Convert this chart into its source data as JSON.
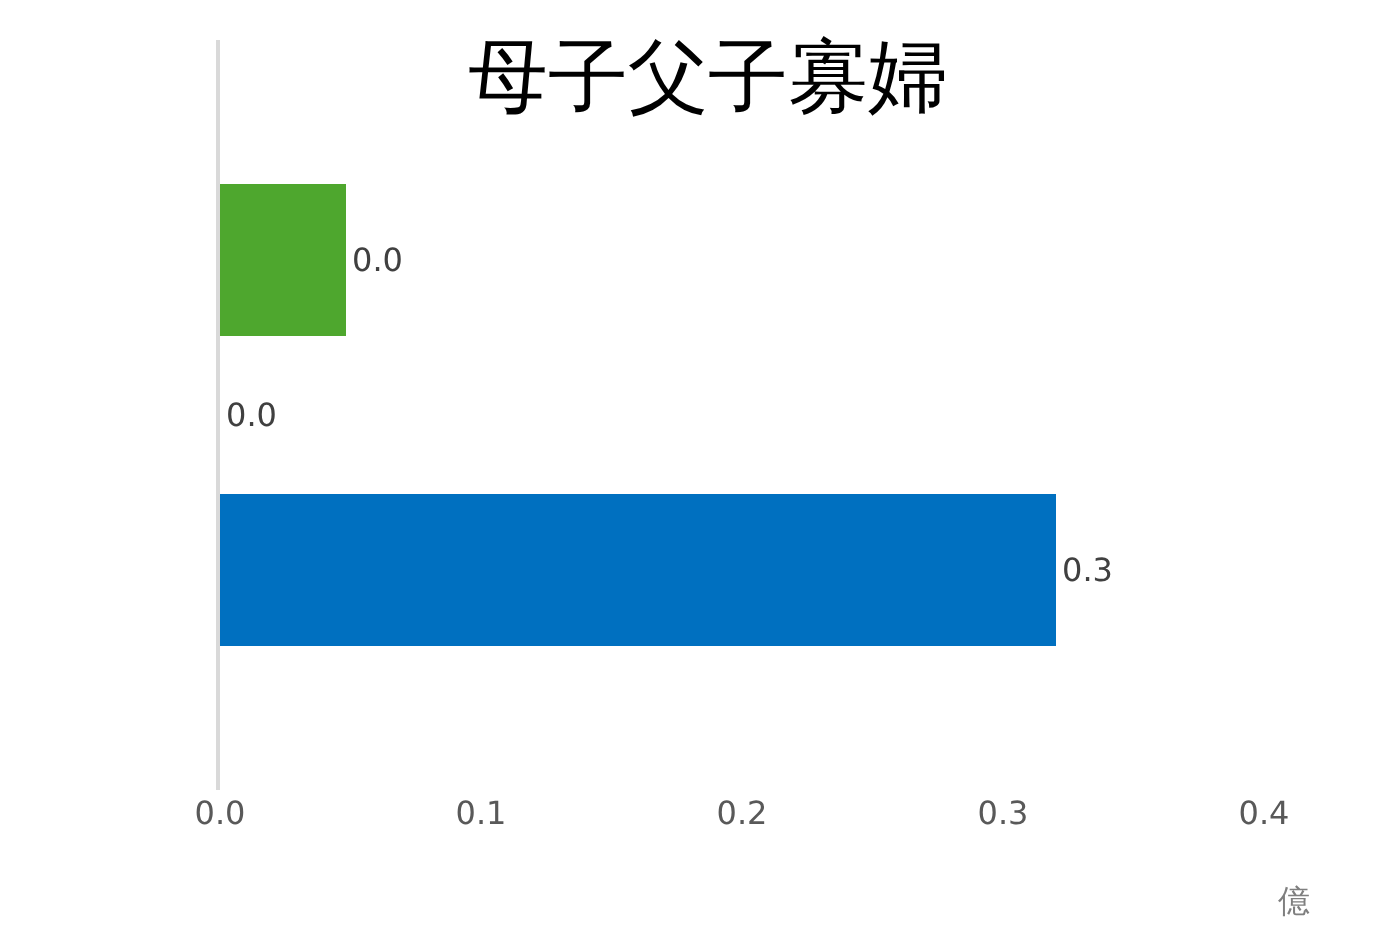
{
  "chart_data": {
    "type": "bar",
    "orientation": "horizontal",
    "title": "母子父子寡婦",
    "xlabel": "億",
    "categories": [
      null,
      null,
      null
    ],
    "series": [
      {
        "values": [
          0.048,
          0,
          0.32
        ],
        "colors": [
          "#4ea72e",
          null,
          "#0070c0"
        ],
        "value_labels": [
          "0.0",
          "0.0",
          "0.3"
        ]
      }
    ],
    "xlim": [
      0,
      0.4
    ],
    "xticks": [
      {
        "value": 0,
        "label": "0.0"
      },
      {
        "value": 0.1,
        "label": "0.1"
      },
      {
        "value": 0.2,
        "label": "0.2"
      },
      {
        "value": 0.3,
        "label": "0.3"
      },
      {
        "value": 0.4,
        "label": "0.4"
      }
    ],
    "tick_labels": "x"
  }
}
